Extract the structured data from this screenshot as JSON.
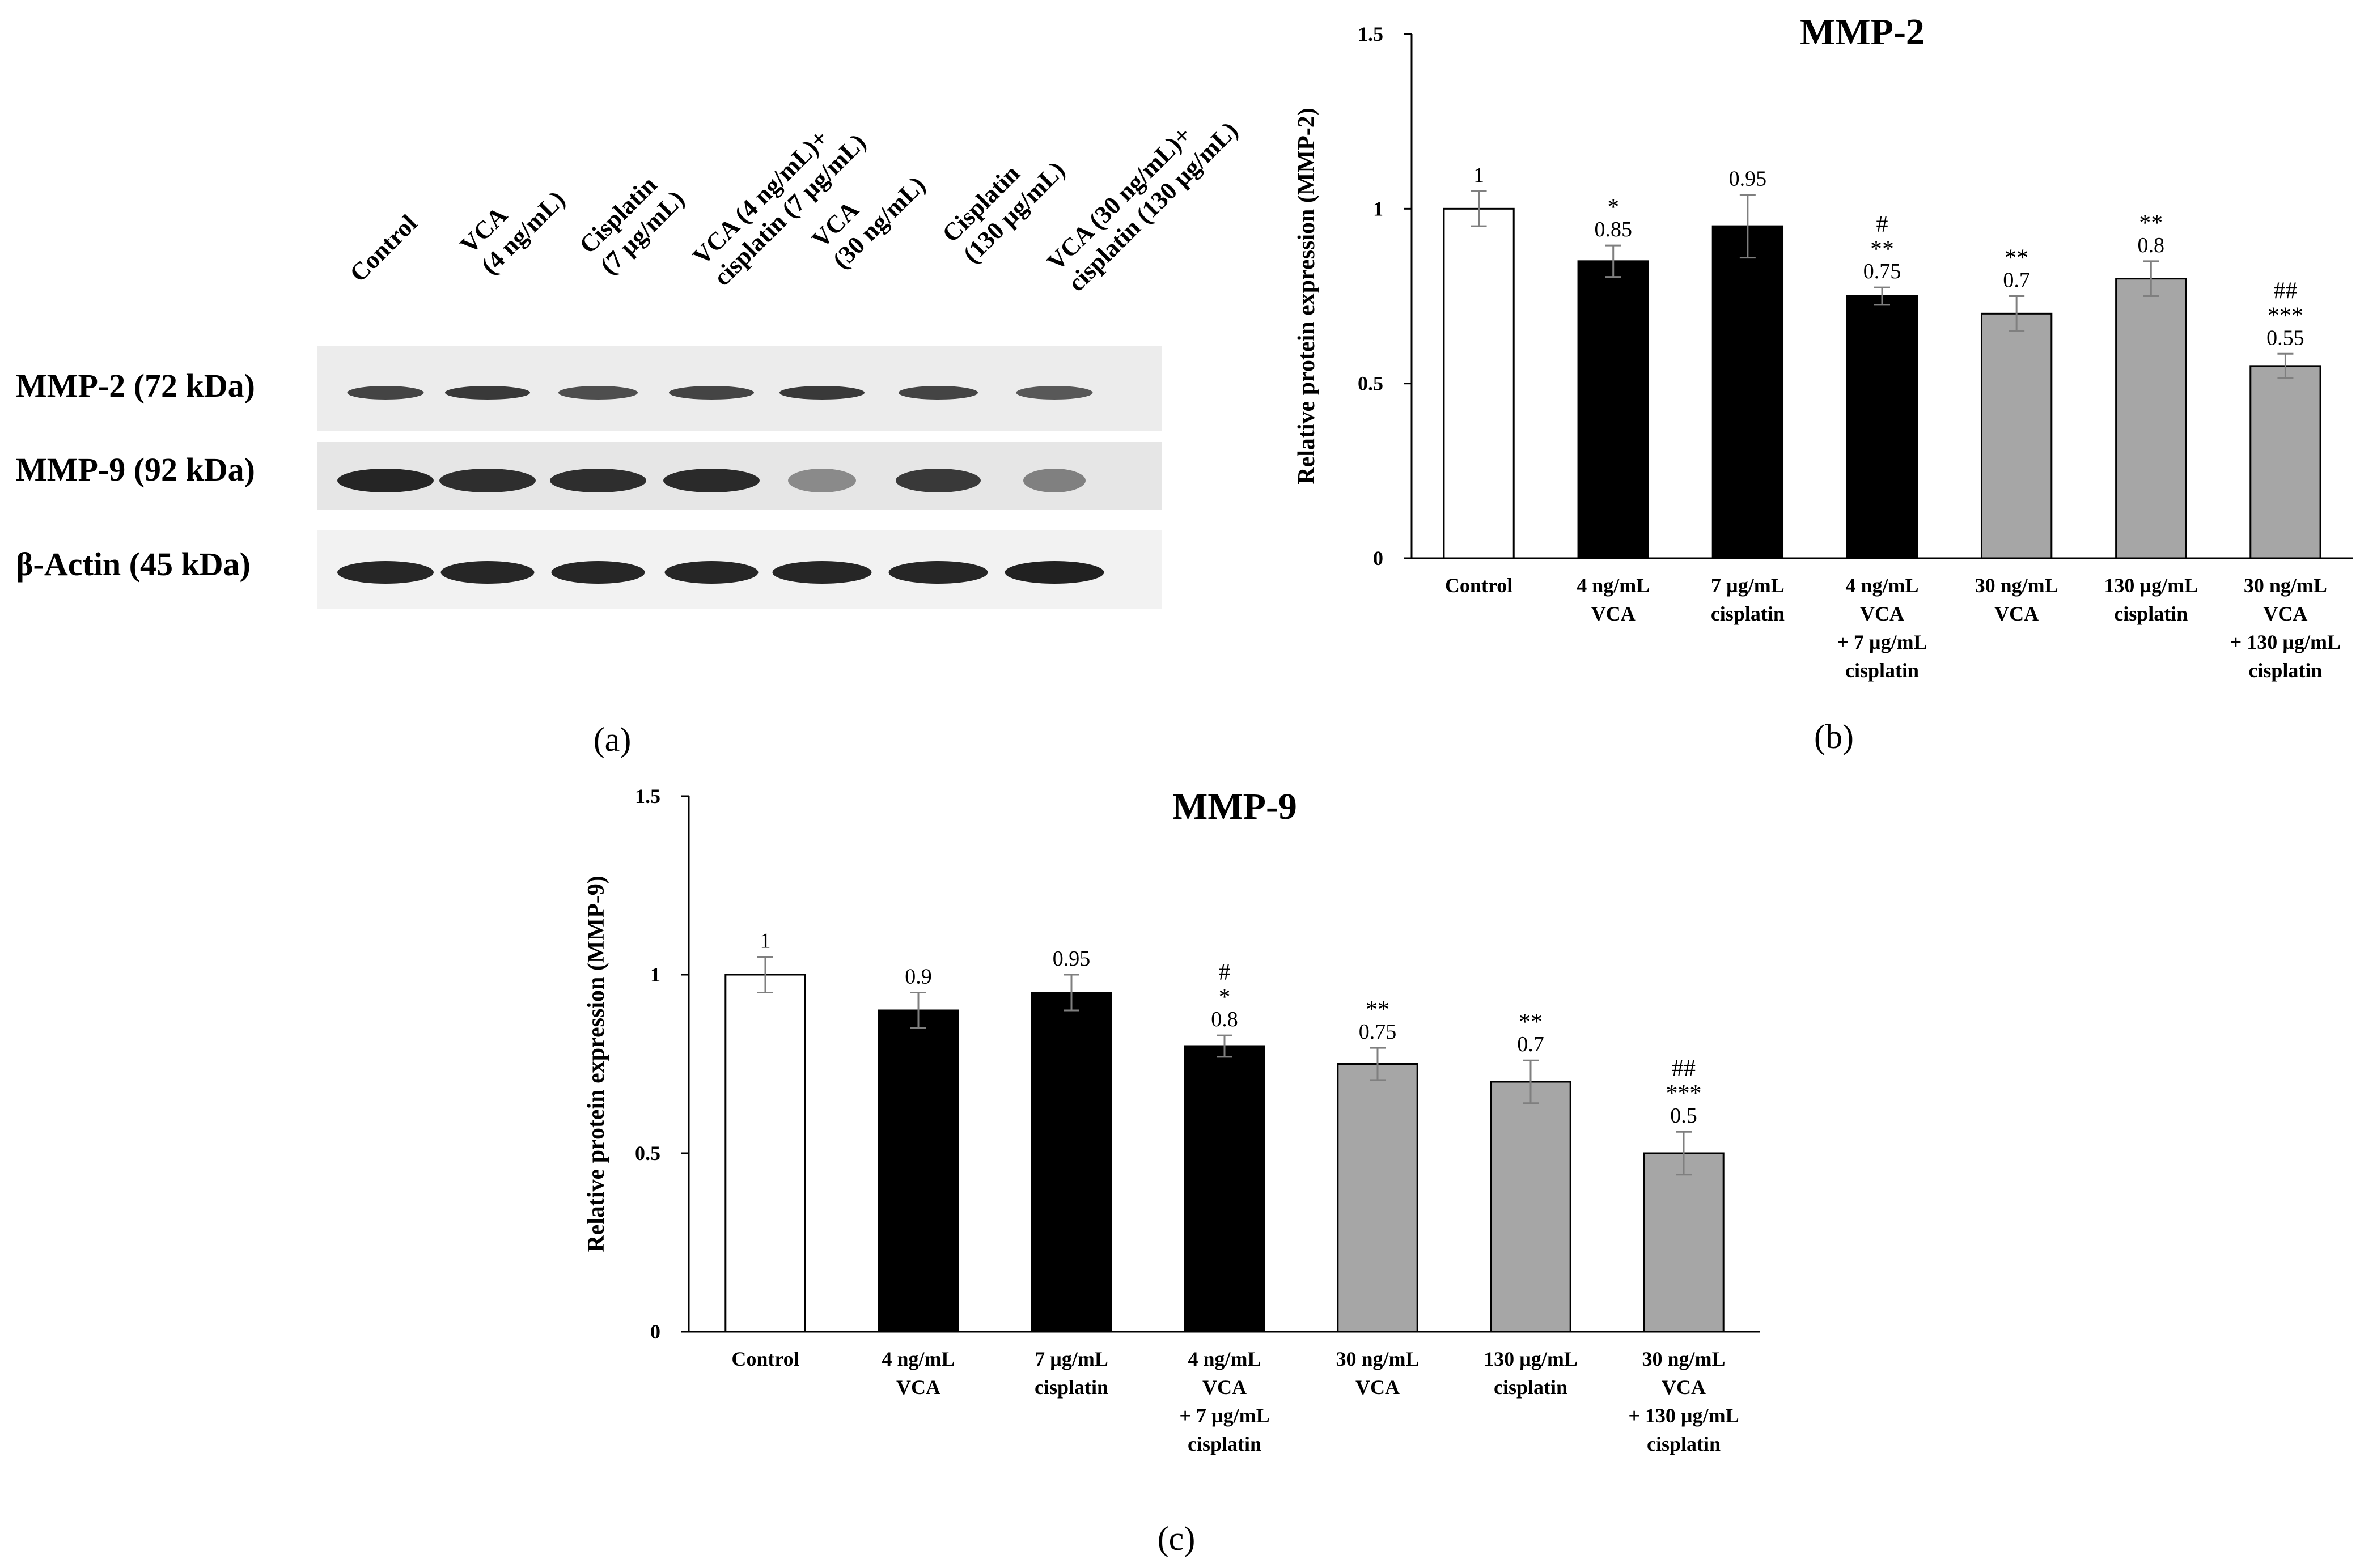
{
  "blot": {
    "lane_headers": [
      [
        "Control"
      ],
      [
        "VCA",
        "(4 ng/mL)"
      ],
      [
        "Cisplatin",
        "(7 µg/mL)"
      ],
      [
        "VCA (4 ng/mL)+",
        "cisplatin (7 µg/mL)"
      ],
      [
        "VCA",
        "(30 ng/mL)"
      ],
      [
        "Cisplatin",
        "(130 µg/mL)"
      ],
      [
        "VCA (30 ng/mL)+",
        "cisplatin (130 µg/mL)"
      ]
    ],
    "rows": [
      {
        "label": "MMP-2 (72 kDa)"
      },
      {
        "label": "MMP-9 (92 kDa)"
      },
      {
        "label": "β-Actin (45 kDa)"
      }
    ],
    "panel_label": "(a)"
  },
  "chart_data": [
    {
      "type": "bar",
      "panel_label": "(b)",
      "title": "MMP-2",
      "ylabel": "Relative protein expression (MMP-2)",
      "xlabel": "",
      "ylim": [
        0,
        1.5
      ],
      "yticks": [
        0,
        0.5,
        1,
        1.5
      ],
      "ytick_labels": [
        "0",
        "0.5",
        "1",
        "1.5"
      ],
      "grid": false,
      "categories": [
        [
          "Control"
        ],
        [
          "4 ng/mL",
          "VCA"
        ],
        [
          "7 µg/mL",
          "cisplatin"
        ],
        [
          "4 ng/mL",
          "VCA",
          "+ 7 µg/mL",
          "cisplatin"
        ],
        [
          "30 ng/mL",
          "VCA"
        ],
        [
          "130 µg/mL",
          "cisplatin"
        ],
        [
          "30 ng/mL",
          "VCA",
          "+ 130 µg/mL",
          "cisplatin"
        ]
      ],
      "values": [
        1,
        0.85,
        0.95,
        0.75,
        0.7,
        0.8,
        0.55
      ],
      "value_labels": [
        "1",
        "0.85",
        "0.95",
        "0.75",
        "0.7",
        "0.8",
        "0.55"
      ],
      "errors": [
        0.05,
        0.045,
        0.09,
        0.025,
        0.05,
        0.05,
        0.035
      ],
      "significance": [
        [],
        [
          "*"
        ],
        [],
        [
          "#",
          "**"
        ],
        [
          "**"
        ],
        [
          "**"
        ],
        [
          "##",
          "***"
        ]
      ],
      "bar_colors": [
        "#ffffff",
        "#000000",
        "#000000",
        "#000000",
        "#a6a6a6",
        "#a6a6a6",
        "#a6a6a6"
      ]
    },
    {
      "type": "bar",
      "panel_label": "(c)",
      "title": "MMP-9",
      "ylabel": "Relative protein expression (MMP-9)",
      "xlabel": "",
      "ylim": [
        0,
        1.5
      ],
      "yticks": [
        0,
        0.5,
        1,
        1.5
      ],
      "ytick_labels": [
        "0",
        "0.5",
        "1",
        "1.5"
      ],
      "grid": false,
      "categories": [
        [
          "Control"
        ],
        [
          "4 ng/mL",
          "VCA"
        ],
        [
          "7 µg/mL",
          "cisplatin"
        ],
        [
          "4 ng/mL",
          "VCA",
          "+ 7 µg/mL",
          "cisplatin"
        ],
        [
          "30 ng/mL",
          "VCA"
        ],
        [
          "130 µg/mL",
          "cisplatin"
        ],
        [
          "30 ng/mL",
          "VCA",
          "+ 130 µg/mL",
          "cisplatin"
        ]
      ],
      "values": [
        1,
        0.9,
        0.95,
        0.8,
        0.75,
        0.7,
        0.5
      ],
      "value_labels": [
        "1",
        "0.9",
        "0.95",
        "0.8",
        "0.75",
        "0.7",
        "0.5"
      ],
      "errors": [
        0.05,
        0.05,
        0.05,
        0.03,
        0.045,
        0.06,
        0.06
      ],
      "significance": [
        [],
        [],
        [],
        [
          "#",
          "*"
        ],
        [
          "**"
        ],
        [
          "**"
        ],
        [
          "##",
          "***"
        ]
      ],
      "bar_colors": [
        "#ffffff",
        "#000000",
        "#000000",
        "#000000",
        "#a6a6a6",
        "#a6a6a6",
        "#a6a6a6"
      ]
    }
  ],
  "colors": {
    "axis": "#000000",
    "error_bar": "#7f7f7f",
    "blot_background": "#ececec",
    "band": "#1a1a1a"
  }
}
